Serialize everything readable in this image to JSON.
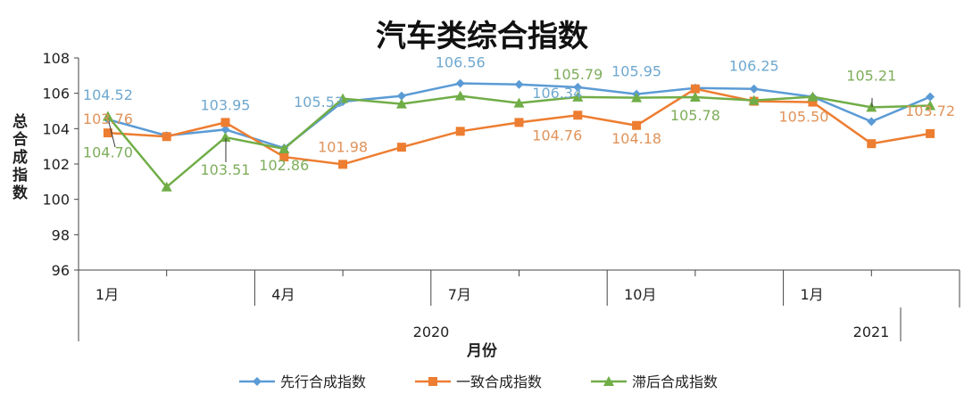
{
  "chart_data": {
    "type": "line",
    "title": "汽车类综合指数",
    "xlabel": "月份",
    "ylabel": "总合成指数",
    "ylim": [
      96,
      108
    ],
    "yticks": [
      96,
      98,
      100,
      102,
      104,
      106,
      108
    ],
    "grid": false,
    "legend": "bottom",
    "x": [
      "2020-01",
      "2020-02",
      "2020-03",
      "2020-04",
      "2020-05",
      "2020-06",
      "2020-07",
      "2020-08",
      "2020-09",
      "2020-10",
      "2020-11",
      "2020-12",
      "2021-01",
      "2021-02",
      "2021-03"
    ],
    "month_labels": [
      {
        "index": 0,
        "text": "1月"
      },
      {
        "index": 3,
        "text": "4月"
      },
      {
        "index": 6,
        "text": "7月"
      },
      {
        "index": 9,
        "text": "10月"
      },
      {
        "index": 12,
        "text": "1月"
      }
    ],
    "year_labels": [
      {
        "text": "2020",
        "start": 0,
        "end": 11
      },
      {
        "text": "2021",
        "start": 12,
        "end": 14
      }
    ],
    "series": [
      {
        "name": "先行合成指数",
        "color": "#5B9BD5",
        "label_color": "#6FA8CF",
        "marker": "diamond",
        "values": [
          104.52,
          103.6,
          103.95,
          102.9,
          105.53,
          105.85,
          106.56,
          106.5,
          106.34,
          105.95,
          106.3,
          106.25,
          105.8,
          104.4,
          105.8
        ],
        "labels": [
          {
            "index": 0,
            "text": "104.52"
          },
          {
            "index": 2,
            "text": "103.95"
          },
          {
            "index": 4,
            "text": "105.53"
          },
          {
            "index": 6,
            "text": "106.56"
          },
          {
            "index": 8,
            "text": "106.34"
          },
          {
            "index": 9,
            "text": "105.95"
          },
          {
            "index": 11,
            "text": "106.25"
          }
        ]
      },
      {
        "name": "一致合成指数",
        "color": "#ED7D31",
        "label_color": "#E0935A",
        "marker": "square",
        "values": [
          103.76,
          103.55,
          104.35,
          102.4,
          101.98,
          102.95,
          103.85,
          104.35,
          104.76,
          104.18,
          106.25,
          105.55,
          105.5,
          103.15,
          103.72
        ],
        "labels": [
          {
            "index": 0,
            "text": "103.76"
          },
          {
            "index": 4,
            "text": "101.98"
          },
          {
            "index": 8,
            "text": "104.76"
          },
          {
            "index": 9,
            "text": "104.18"
          },
          {
            "index": 12,
            "text": "105.50"
          },
          {
            "index": 14,
            "text": "103.72"
          }
        ]
      },
      {
        "name": "滞后合成指数",
        "color": "#70AD47",
        "label_color": "#7EAD5A",
        "marker": "triangle",
        "values": [
          104.7,
          100.7,
          103.51,
          102.86,
          105.7,
          105.4,
          105.85,
          105.45,
          105.79,
          105.75,
          105.78,
          105.6,
          105.8,
          105.21,
          105.3
        ],
        "labels": [
          {
            "index": 0,
            "text": "104.70"
          },
          {
            "index": 2,
            "text": "103.51"
          },
          {
            "index": 3,
            "text": "102.86"
          },
          {
            "index": 8,
            "text": "105.79"
          },
          {
            "index": 10,
            "text": "105.78"
          },
          {
            "index": 13,
            "text": "105.21"
          }
        ]
      }
    ]
  }
}
